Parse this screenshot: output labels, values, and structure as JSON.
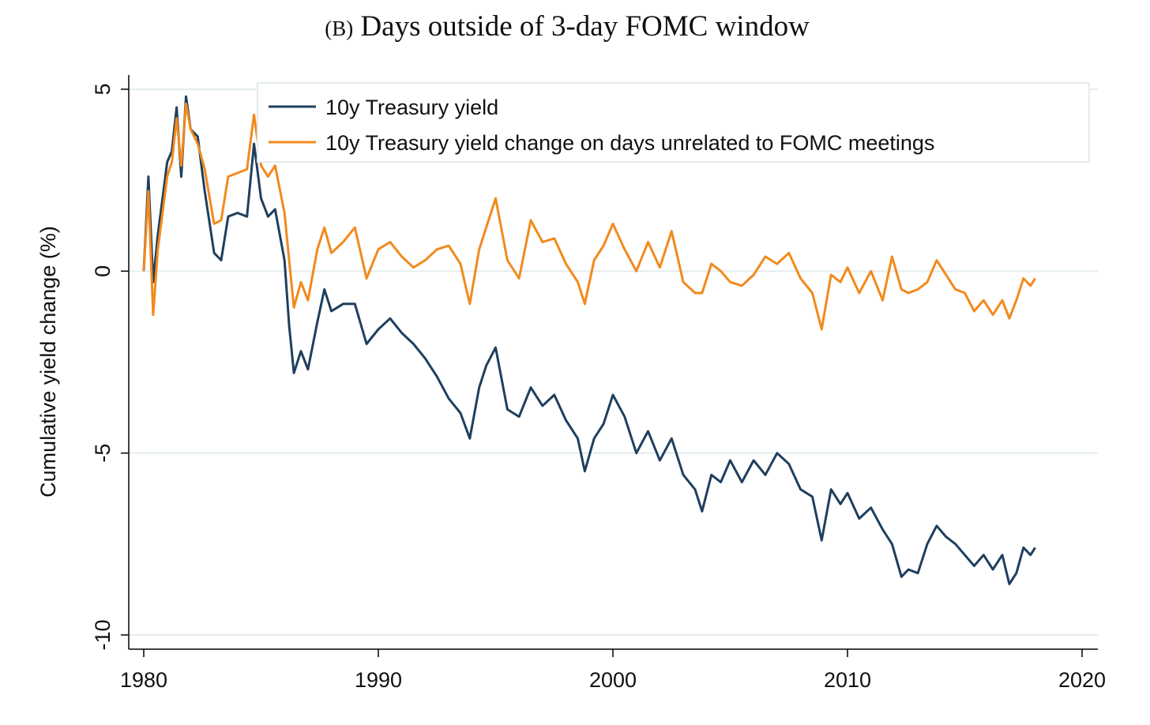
{
  "figure": {
    "panel_label": "(B)",
    "title": "Days outside of 3-day FOMC window"
  },
  "chart_data": {
    "type": "line",
    "title": "Days outside of 3-day FOMC window",
    "xlabel": "",
    "ylabel": "Cumulative yield change (%)",
    "xlim": [
      1980,
      2020
    ],
    "ylim": [
      -10,
      5
    ],
    "xticks": [
      1980,
      1990,
      2000,
      2010,
      2020
    ],
    "yticks": [
      5,
      0,
      -5,
      -10
    ],
    "grid": "horizontal",
    "legend_position": "top-right",
    "series": [
      {
        "name": "10y Treasury yield",
        "color": "#1f3f5f",
        "x": [
          1980.0,
          1980.2,
          1980.4,
          1980.6,
          1980.8,
          1981.0,
          1981.2,
          1981.4,
          1981.6,
          1981.8,
          1982.0,
          1982.3,
          1982.6,
          1983.0,
          1983.3,
          1983.6,
          1984.0,
          1984.4,
          1984.7,
          1985.0,
          1985.3,
          1985.6,
          1986.0,
          1986.2,
          1986.4,
          1986.7,
          1987.0,
          1987.4,
          1987.7,
          1988.0,
          1988.5,
          1989.0,
          1989.5,
          1990.0,
          1990.5,
          1991.0,
          1991.5,
          1992.0,
          1992.5,
          1993.0,
          1993.5,
          1993.9,
          1994.3,
          1994.6,
          1995.0,
          1995.5,
          1996.0,
          1996.5,
          1997.0,
          1997.5,
          1998.0,
          1998.5,
          1998.8,
          1999.2,
          1999.6,
          2000.0,
          2000.5,
          2001.0,
          2001.5,
          2002.0,
          2002.5,
          2003.0,
          2003.5,
          2003.8,
          2004.2,
          2004.6,
          2005.0,
          2005.5,
          2006.0,
          2006.5,
          2007.0,
          2007.5,
          2008.0,
          2008.5,
          2008.9,
          2009.3,
          2009.7,
          2010.0,
          2010.5,
          2011.0,
          2011.5,
          2011.9,
          2012.3,
          2012.6,
          2013.0,
          2013.4,
          2013.8,
          2014.2,
          2014.6,
          2015.0,
          2015.4,
          2015.8,
          2016.2,
          2016.6,
          2016.9,
          2017.2,
          2017.5,
          2017.8,
          2018.0
        ],
        "y": [
          0.0,
          2.6,
          -0.3,
          1.0,
          2.0,
          3.0,
          3.3,
          4.5,
          2.6,
          4.8,
          3.9,
          3.7,
          2.2,
          0.5,
          0.3,
          1.5,
          1.6,
          1.5,
          3.5,
          2.0,
          1.5,
          1.7,
          0.3,
          -1.5,
          -2.8,
          -2.2,
          -2.7,
          -1.4,
          -0.5,
          -1.1,
          -0.9,
          -0.9,
          -2.0,
          -1.6,
          -1.3,
          -1.7,
          -2.0,
          -2.4,
          -2.9,
          -3.5,
          -3.9,
          -4.6,
          -3.2,
          -2.6,
          -2.1,
          -3.8,
          -4.0,
          -3.2,
          -3.7,
          -3.4,
          -4.1,
          -4.6,
          -5.5,
          -4.6,
          -4.2,
          -3.4,
          -4.0,
          -5.0,
          -4.4,
          -5.2,
          -4.6,
          -5.6,
          -6.0,
          -6.6,
          -5.6,
          -5.8,
          -5.2,
          -5.8,
          -5.2,
          -5.6,
          -5.0,
          -5.3,
          -6.0,
          -6.2,
          -7.4,
          -6.0,
          -6.4,
          -6.1,
          -6.8,
          -6.5,
          -7.1,
          -7.5,
          -8.4,
          -8.2,
          -8.3,
          -7.5,
          -7.0,
          -7.3,
          -7.5,
          -7.8,
          -8.1,
          -7.8,
          -8.2,
          -7.8,
          -8.6,
          -8.3,
          -7.6,
          -7.8,
          -7.6
        ]
      },
      {
        "name": "10y Treasury yield change on days unrelated to FOMC meetings",
        "color": "#f28a1c",
        "x": [
          1980.0,
          1980.2,
          1980.4,
          1980.6,
          1980.8,
          1981.0,
          1981.2,
          1981.4,
          1981.6,
          1981.8,
          1982.0,
          1982.3,
          1982.6,
          1983.0,
          1983.3,
          1983.6,
          1984.0,
          1984.4,
          1984.7,
          1985.0,
          1985.3,
          1985.6,
          1986.0,
          1986.2,
          1986.4,
          1986.7,
          1987.0,
          1987.4,
          1987.7,
          1988.0,
          1988.5,
          1989.0,
          1989.5,
          1990.0,
          1990.5,
          1991.0,
          1991.5,
          1992.0,
          1992.5,
          1993.0,
          1993.5,
          1993.9,
          1994.3,
          1994.6,
          1995.0,
          1995.5,
          1996.0,
          1996.5,
          1997.0,
          1997.5,
          1998.0,
          1998.5,
          1998.8,
          1999.2,
          1999.6,
          2000.0,
          2000.5,
          2001.0,
          2001.5,
          2002.0,
          2002.5,
          2003.0,
          2003.5,
          2003.8,
          2004.2,
          2004.6,
          2005.0,
          2005.5,
          2006.0,
          2006.5,
          2007.0,
          2007.5,
          2008.0,
          2008.5,
          2008.9,
          2009.3,
          2009.7,
          2010.0,
          2010.5,
          2011.0,
          2011.5,
          2011.9,
          2012.3,
          2012.6,
          2013.0,
          2013.4,
          2013.8,
          2014.2,
          2014.6,
          2015.0,
          2015.4,
          2015.8,
          2016.2,
          2016.6,
          2016.9,
          2017.2,
          2017.5,
          2017.8,
          2018.0
        ],
        "y": [
          0.0,
          2.2,
          -1.2,
          0.6,
          1.6,
          2.6,
          3.0,
          4.2,
          2.9,
          4.6,
          3.9,
          3.5,
          2.8,
          1.3,
          1.4,
          2.6,
          2.7,
          2.8,
          4.3,
          2.9,
          2.6,
          2.9,
          1.6,
          0.3,
          -1.0,
          -0.3,
          -0.8,
          0.6,
          1.2,
          0.5,
          0.8,
          1.2,
          -0.2,
          0.6,
          0.8,
          0.4,
          0.1,
          0.3,
          0.6,
          0.7,
          0.2,
          -0.9,
          0.6,
          1.2,
          2.0,
          0.3,
          -0.2,
          1.4,
          0.8,
          0.9,
          0.2,
          -0.3,
          -0.9,
          0.3,
          0.7,
          1.3,
          0.6,
          0.0,
          0.8,
          0.1,
          1.1,
          -0.3,
          -0.6,
          -0.6,
          0.2,
          0.0,
          -0.3,
          -0.4,
          -0.1,
          0.4,
          0.2,
          0.5,
          -0.2,
          -0.6,
          -1.6,
          -0.1,
          -0.3,
          0.1,
          -0.6,
          0.0,
          -0.8,
          0.4,
          -0.5,
          -0.6,
          -0.5,
          -0.3,
          0.3,
          -0.1,
          -0.5,
          -0.6,
          -1.1,
          -0.8,
          -1.2,
          -0.8,
          -1.3,
          -0.8,
          -0.2,
          -0.4,
          -0.2
        ]
      }
    ]
  }
}
